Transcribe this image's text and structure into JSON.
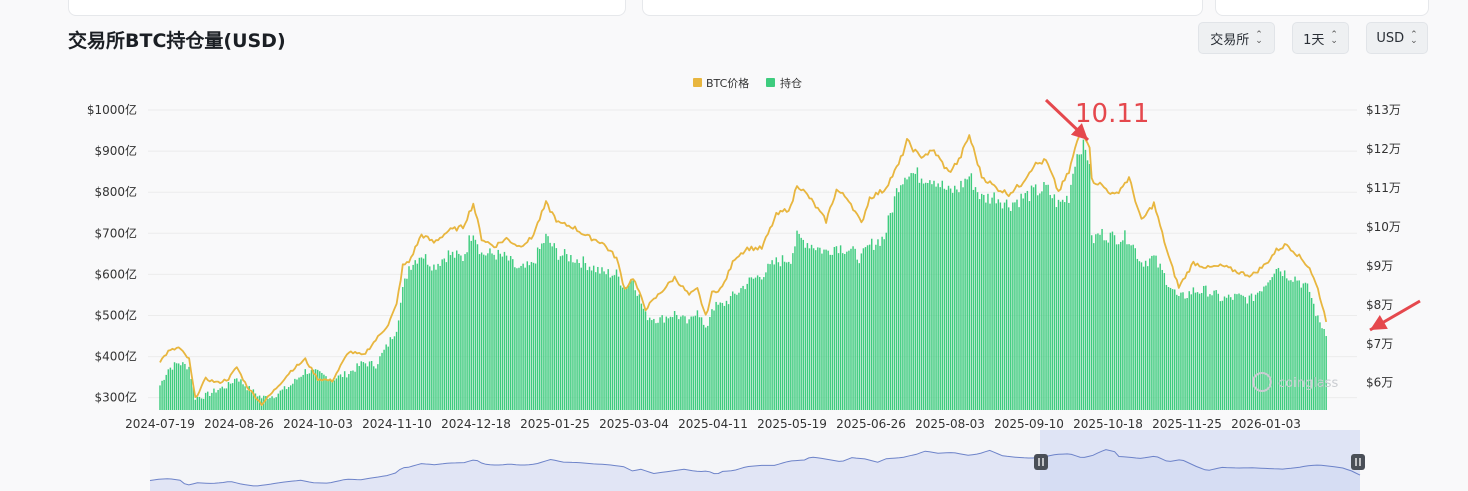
{
  "title": "交易所BTC持仓量(USD)",
  "controls": {
    "exchange": "交易所",
    "interval": "1天",
    "currency": "USD"
  },
  "colors": {
    "holdings": "#3ecc7e",
    "price": "#e8b63f",
    "annotation": "#e5484d",
    "navigator_fill": "#cdd6f2",
    "navigator_line": "#6d83c9"
  },
  "annotation": {
    "text": "10.11"
  },
  "watermark": "coinglass",
  "chart_data": {
    "type": "bar",
    "legend": [
      "BTC价格",
      "持仓"
    ],
    "legend_position": "top-center",
    "grid": true,
    "y_left_ticks": [
      "$300亿",
      "$400亿",
      "$500亿",
      "$600亿",
      "$700亿",
      "$800亿",
      "$900亿",
      "$1000亿"
    ],
    "y_right_ticks": [
      "$6万",
      "$7万",
      "$8万",
      "$9万",
      "$10万",
      "$11万",
      "$12万",
      "$13万"
    ],
    "y_left_unit": "亿 USD",
    "y_right_unit": "万 USD",
    "ylim_left": [
      270,
      1000
    ],
    "ylim_right": [
      53000,
      130000
    ],
    "x_ticks": [
      "2024-07-19",
      "2024-08-26",
      "2024-10-03",
      "2024-11-10",
      "2024-12-18",
      "2025-01-25",
      "2025-03-04",
      "2025-04-11",
      "2025-05-19",
      "2025-06-26",
      "2025-08-03",
      "2025-09-10",
      "2025-10-18",
      "2025-11-25",
      "2026-01-03"
    ],
    "series": [
      {
        "name": "持仓",
        "kind": "bar",
        "axis": "left",
        "points": [
          [
            "2024-07-19",
            330
          ],
          [
            "2024-07-23",
            370
          ],
          [
            "2024-07-28",
            385
          ],
          [
            "2024-08-02",
            375
          ],
          [
            "2024-08-05",
            300
          ],
          [
            "2024-08-10",
            305
          ],
          [
            "2024-08-16",
            320
          ],
          [
            "2024-08-21",
            330
          ],
          [
            "2024-08-25",
            350
          ],
          [
            "2024-08-30",
            325
          ],
          [
            "2024-09-06",
            300
          ],
          [
            "2024-09-12",
            305
          ],
          [
            "2024-09-20",
            330
          ],
          [
            "2024-09-27",
            365
          ],
          [
            "2024-10-03",
            360
          ],
          [
            "2024-10-10",
            345
          ],
          [
            "2024-10-18",
            360
          ],
          [
            "2024-10-25",
            385
          ],
          [
            "2024-10-31",
            380
          ],
          [
            "2024-11-06",
            430
          ],
          [
            "2024-11-10",
            470
          ],
          [
            "2024-11-13",
            560
          ],
          [
            "2024-11-16",
            620
          ],
          [
            "2024-11-22",
            650
          ],
          [
            "2024-11-28",
            620
          ],
          [
            "2024-12-05",
            650
          ],
          [
            "2024-12-12",
            640
          ],
          [
            "2024-12-17",
            710
          ],
          [
            "2024-12-21",
            650
          ],
          [
            "2024-12-27",
            650
          ],
          [
            "2025-01-02",
            640
          ],
          [
            "2025-01-08",
            610
          ],
          [
            "2025-01-14",
            620
          ],
          [
            "2025-01-21",
            690
          ],
          [
            "2025-01-27",
            650
          ],
          [
            "2025-02-03",
            640
          ],
          [
            "2025-02-10",
            625
          ],
          [
            "2025-02-17",
            605
          ],
          [
            "2025-02-24",
            600
          ],
          [
            "2025-02-28",
            570
          ],
          [
            "2025-03-04",
            590
          ],
          [
            "2025-03-10",
            500
          ],
          [
            "2025-03-17",
            490
          ],
          [
            "2025-03-24",
            505
          ],
          [
            "2025-03-31",
            480
          ],
          [
            "2025-04-04",
            520
          ],
          [
            "2025-04-08",
            460
          ],
          [
            "2025-04-11",
            520
          ],
          [
            "2025-04-16",
            525
          ],
          [
            "2025-04-22",
            550
          ],
          [
            "2025-04-28",
            580
          ],
          [
            "2025-05-05",
            600
          ],
          [
            "2025-05-12",
            630
          ],
          [
            "2025-05-19",
            640
          ],
          [
            "2025-05-22",
            690
          ],
          [
            "2025-05-28",
            675
          ],
          [
            "2025-06-05",
            655
          ],
          [
            "2025-06-10",
            670
          ],
          [
            "2025-06-16",
            660
          ],
          [
            "2025-06-22",
            640
          ],
          [
            "2025-06-26",
            670
          ],
          [
            "2025-07-03",
            690
          ],
          [
            "2025-07-10",
            820
          ],
          [
            "2025-07-14",
            850
          ],
          [
            "2025-07-20",
            840
          ],
          [
            "2025-07-27",
            835
          ],
          [
            "2025-08-03",
            800
          ],
          [
            "2025-08-08",
            810
          ],
          [
            "2025-08-13",
            840
          ],
          [
            "2025-08-19",
            785
          ],
          [
            "2025-08-26",
            790
          ],
          [
            "2025-09-01",
            770
          ],
          [
            "2025-09-07",
            785
          ],
          [
            "2025-09-13",
            800
          ],
          [
            "2025-09-19",
            810
          ],
          [
            "2025-09-25",
            770
          ],
          [
            "2025-09-30",
            790
          ],
          [
            "2025-10-03",
            880
          ],
          [
            "2025-10-06",
            915
          ],
          [
            "2025-10-10",
            880
          ],
          [
            "2025-10-11",
            680
          ],
          [
            "2025-10-15",
            700
          ],
          [
            "2025-10-22",
            690
          ],
          [
            "2025-10-29",
            690
          ],
          [
            "2025-11-04",
            630
          ],
          [
            "2025-11-10",
            640
          ],
          [
            "2025-11-17",
            580
          ],
          [
            "2025-11-22",
            540
          ],
          [
            "2025-11-29",
            560
          ],
          [
            "2025-12-06",
            560
          ],
          [
            "2025-12-13",
            540
          ],
          [
            "2025-12-20",
            545
          ],
          [
            "2025-12-27",
            540
          ],
          [
            "2026-01-03",
            580
          ],
          [
            "2026-01-08",
            620
          ],
          [
            "2026-01-13",
            600
          ],
          [
            "2026-01-18",
            590
          ],
          [
            "2026-01-24",
            560
          ],
          [
            "2026-01-28",
            490
          ],
          [
            "2026-02-01",
            460
          ]
        ]
      },
      {
        "name": "BTC价格",
        "kind": "line",
        "axis": "right",
        "points": [
          [
            "2024-07-19",
            65500
          ],
          [
            "2024-07-23",
            68000
          ],
          [
            "2024-07-28",
            69000
          ],
          [
            "2024-08-02",
            66000
          ],
          [
            "2024-08-05",
            56000
          ],
          [
            "2024-08-10",
            61000
          ],
          [
            "2024-08-16",
            60000
          ],
          [
            "2024-08-21",
            61000
          ],
          [
            "2024-08-25",
            64000
          ],
          [
            "2024-08-30",
            59000
          ],
          [
            "2024-09-06",
            54500
          ],
          [
            "2024-09-12",
            58000
          ],
          [
            "2024-09-20",
            63000
          ],
          [
            "2024-09-27",
            66000
          ],
          [
            "2024-10-03",
            61000
          ],
          [
            "2024-10-10",
            60500
          ],
          [
            "2024-10-18",
            68000
          ],
          [
            "2024-10-25",
            67000
          ],
          [
            "2024-10-31",
            71000
          ],
          [
            "2024-11-06",
            75000
          ],
          [
            "2024-11-10",
            80000
          ],
          [
            "2024-11-13",
            90000
          ],
          [
            "2024-11-16",
            91000
          ],
          [
            "2024-11-22",
            98000
          ],
          [
            "2024-11-28",
            96000
          ],
          [
            "2024-12-05",
            99000
          ],
          [
            "2024-12-12",
            100000
          ],
          [
            "2024-12-17",
            106000
          ],
          [
            "2024-12-21",
            97000
          ],
          [
            "2024-12-27",
            95000
          ],
          [
            "2025-01-02",
            97000
          ],
          [
            "2025-01-08",
            95000
          ],
          [
            "2025-01-14",
            97000
          ],
          [
            "2025-01-21",
            106000
          ],
          [
            "2025-01-27",
            101000
          ],
          [
            "2025-02-03",
            100000
          ],
          [
            "2025-02-10",
            97500
          ],
          [
            "2025-02-17",
            96000
          ],
          [
            "2025-02-24",
            92000
          ],
          [
            "2025-02-28",
            84000
          ],
          [
            "2025-03-04",
            87000
          ],
          [
            "2025-03-10",
            79000
          ],
          [
            "2025-03-17",
            83000
          ],
          [
            "2025-03-24",
            87000
          ],
          [
            "2025-03-31",
            82500
          ],
          [
            "2025-04-04",
            84000
          ],
          [
            "2025-04-08",
            77000
          ],
          [
            "2025-04-11",
            83000
          ],
          [
            "2025-04-16",
            84500
          ],
          [
            "2025-04-22",
            92000
          ],
          [
            "2025-04-28",
            94500
          ],
          [
            "2025-05-05",
            94500
          ],
          [
            "2025-05-12",
            103000
          ],
          [
            "2025-05-19",
            105000
          ],
          [
            "2025-05-22",
            111000
          ],
          [
            "2025-05-28",
            107500
          ],
          [
            "2025-06-05",
            101500
          ],
          [
            "2025-06-10",
            109500
          ],
          [
            "2025-06-16",
            107000
          ],
          [
            "2025-06-22",
            100800
          ],
          [
            "2025-06-26",
            107500
          ],
          [
            "2025-07-03",
            109500
          ],
          [
            "2025-07-10",
            116000
          ],
          [
            "2025-07-14",
            122000
          ],
          [
            "2025-07-20",
            118000
          ],
          [
            "2025-07-27",
            119500
          ],
          [
            "2025-08-03",
            114000
          ],
          [
            "2025-08-08",
            117000
          ],
          [
            "2025-08-13",
            123500
          ],
          [
            "2025-08-19",
            113000
          ],
          [
            "2025-08-26",
            110000
          ],
          [
            "2025-09-01",
            108500
          ],
          [
            "2025-09-07",
            111000
          ],
          [
            "2025-09-13",
            115800
          ],
          [
            "2025-09-19",
            117000
          ],
          [
            "2025-09-25",
            109000
          ],
          [
            "2025-09-30",
            114000
          ],
          [
            "2025-10-03",
            120000
          ],
          [
            "2025-10-06",
            125000
          ],
          [
            "2025-10-10",
            121000
          ],
          [
            "2025-10-11",
            112000
          ],
          [
            "2025-10-15",
            111000
          ],
          [
            "2025-10-22",
            108000
          ],
          [
            "2025-10-29",
            112500
          ],
          [
            "2025-11-04",
            101500
          ],
          [
            "2025-11-10",
            106000
          ],
          [
            "2025-11-17",
            92500
          ],
          [
            "2025-11-22",
            84500
          ],
          [
            "2025-11-29",
            90800
          ],
          [
            "2025-12-06",
            89500
          ],
          [
            "2025-12-13",
            90000
          ],
          [
            "2025-12-20",
            88500
          ],
          [
            "2025-12-27",
            87500
          ],
          [
            "2026-01-03",
            90500
          ],
          [
            "2026-01-08",
            94000
          ],
          [
            "2026-01-13",
            95500
          ],
          [
            "2026-01-18",
            93000
          ],
          [
            "2026-01-24",
            89500
          ],
          [
            "2026-01-28",
            84000
          ],
          [
            "2026-02-01",
            76000
          ]
        ]
      }
    ]
  }
}
